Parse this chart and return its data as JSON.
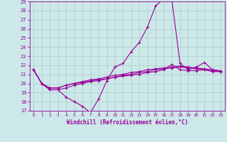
{
  "xlabel": "Windchill (Refroidissement éolien,°C)",
  "bg_color": "#cce8e8",
  "line_color": "#990099",
  "grid_color": "#aacccc",
  "xlim": [
    -0.5,
    23.5
  ],
  "ylim": [
    17,
    29
  ],
  "xticks": [
    0,
    1,
    2,
    3,
    4,
    5,
    6,
    7,
    8,
    9,
    10,
    11,
    12,
    13,
    14,
    15,
    16,
    17,
    18,
    19,
    20,
    21,
    22,
    23
  ],
  "yticks": [
    17,
    18,
    19,
    20,
    21,
    22,
    23,
    24,
    25,
    26,
    27,
    28,
    29
  ],
  "series": [
    [
      21.5,
      20.0,
      19.3,
      19.3,
      18.5,
      18.0,
      17.5,
      16.8,
      18.3,
      20.3,
      21.8,
      22.2,
      23.5,
      24.5,
      26.2,
      28.5,
      29.3,
      29.2,
      22.2,
      21.5,
      21.8,
      22.3,
      21.5,
      21.3
    ],
    [
      21.5,
      20.0,
      19.3,
      19.3,
      19.5,
      19.8,
      20.0,
      20.2,
      20.3,
      20.5,
      20.7,
      20.8,
      20.9,
      21.0,
      21.2,
      21.3,
      21.5,
      22.1,
      21.5,
      21.4,
      21.4,
      21.5,
      21.3,
      21.3
    ],
    [
      21.5,
      20.0,
      19.5,
      19.5,
      19.8,
      20.0,
      20.1,
      20.3,
      20.4,
      20.5,
      20.7,
      20.9,
      21.0,
      21.2,
      21.3,
      21.5,
      21.6,
      21.7,
      21.8,
      21.7,
      21.6,
      21.5,
      21.4,
      21.3
    ],
    [
      21.5,
      20.0,
      19.5,
      19.5,
      19.8,
      20.0,
      20.2,
      20.4,
      20.5,
      20.7,
      20.9,
      21.0,
      21.2,
      21.3,
      21.5,
      21.6,
      21.7,
      21.8,
      21.9,
      21.8,
      21.7,
      21.6,
      21.5,
      21.4
    ]
  ],
  "marker": "+"
}
